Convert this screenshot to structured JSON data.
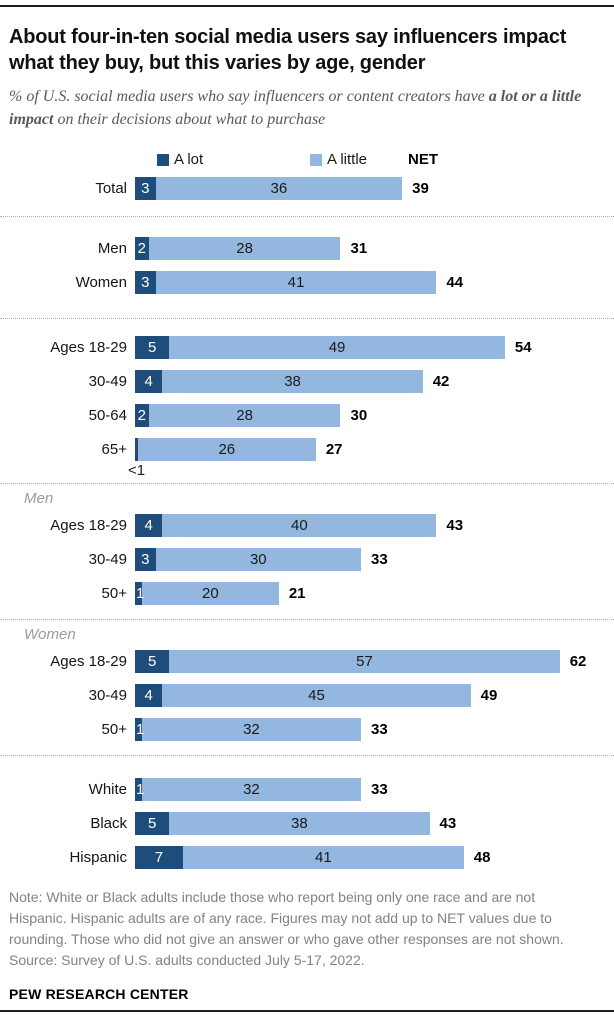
{
  "header": {
    "title": "About four-in-ten social media users say influencers impact what they buy, but this varies by age, gender",
    "subtitle_prefix": "% of U.S. social media users who say influencers or content creators have ",
    "subtitle_bold": "a lot or a little impact",
    "subtitle_suffix": " on their decisions about what to purchase"
  },
  "legend": {
    "a_lot": "A lot",
    "a_little": "A little",
    "net": "NET"
  },
  "colors": {
    "a_lot": "#1e4d7b",
    "a_little": "#94b7e0"
  },
  "chart_data": {
    "type": "bar",
    "orientation": "horizontal",
    "stacked": true,
    "unit": "percent of U.S. social media users",
    "series_names": [
      "A lot",
      "A little"
    ],
    "net_label": "NET",
    "xlim": [
      0,
      70
    ],
    "value_labels_shown": true,
    "groups": [
      {
        "section_label": null,
        "rows": [
          {
            "label": "Total",
            "a_lot": 3,
            "a_lot_display": "3",
            "label_pos": "inside",
            "a_little": 36,
            "net": 39
          }
        ]
      },
      {
        "section_label": null,
        "rows": [
          {
            "label": "Men",
            "a_lot": 2,
            "a_lot_display": "2",
            "label_pos": "inside",
            "a_little": 28,
            "net": 31
          },
          {
            "label": "Women",
            "a_lot": 3,
            "a_lot_display": "3",
            "label_pos": "inside",
            "a_little": 41,
            "net": 44
          }
        ]
      },
      {
        "section_label": null,
        "rows": [
          {
            "label": "Ages 18-29",
            "a_lot": 5,
            "a_lot_display": "5",
            "label_pos": "inside",
            "a_little": 49,
            "net": 54
          },
          {
            "label": "30-49",
            "a_lot": 4,
            "a_lot_display": "4",
            "label_pos": "inside",
            "a_little": 38,
            "net": 42
          },
          {
            "label": "50-64",
            "a_lot": 2,
            "a_lot_display": "2",
            "label_pos": "inside",
            "a_little": 28,
            "net": 30
          },
          {
            "label": "65+",
            "a_lot": 0.4,
            "a_lot_display": "<1",
            "label_pos": "below",
            "a_little": 26,
            "net": 27
          }
        ]
      },
      {
        "section_label": "Men",
        "rows": [
          {
            "label": "Ages 18-29",
            "a_lot": 4,
            "a_lot_display": "4",
            "label_pos": "inside",
            "a_little": 40,
            "net": 43
          },
          {
            "label": "30-49",
            "a_lot": 3,
            "a_lot_display": "3",
            "label_pos": "inside",
            "a_little": 30,
            "net": 33
          },
          {
            "label": "50+",
            "a_lot": 1,
            "a_lot_display": "1",
            "label_pos": "overlay",
            "a_little": 20,
            "net": 21
          }
        ]
      },
      {
        "section_label": "Women",
        "rows": [
          {
            "label": "Ages 18-29",
            "a_lot": 5,
            "a_lot_display": "5",
            "label_pos": "inside",
            "a_little": 57,
            "net": 62
          },
          {
            "label": "30-49",
            "a_lot": 4,
            "a_lot_display": "4",
            "label_pos": "inside",
            "a_little": 45,
            "net": 49
          },
          {
            "label": "50+",
            "a_lot": 1,
            "a_lot_display": "1",
            "label_pos": "overlay",
            "a_little": 32,
            "net": 33
          }
        ]
      },
      {
        "section_label": null,
        "rows": [
          {
            "label": "White",
            "a_lot": 1,
            "a_lot_display": "1",
            "label_pos": "overlay",
            "a_little": 32,
            "net": 33
          },
          {
            "label": "Black",
            "a_lot": 5,
            "a_lot_display": "5",
            "label_pos": "inside",
            "a_little": 38,
            "net": 43
          },
          {
            "label": "Hispanic",
            "a_lot": 7,
            "a_lot_display": "7",
            "label_pos": "inside",
            "a_little": 41,
            "net": 48
          }
        ]
      }
    ]
  },
  "footer": {
    "note": "Note: White or Black adults include those who report being only one race and are not Hispanic. Hispanic adults are of any race. Figures may not add up to NET values due to rounding. Those who did not give an answer or who gave other responses are not shown.",
    "source": "Source: Survey of U.S. adults conducted July 5-17, 2022.",
    "brand": "PEW RESEARCH CENTER"
  }
}
